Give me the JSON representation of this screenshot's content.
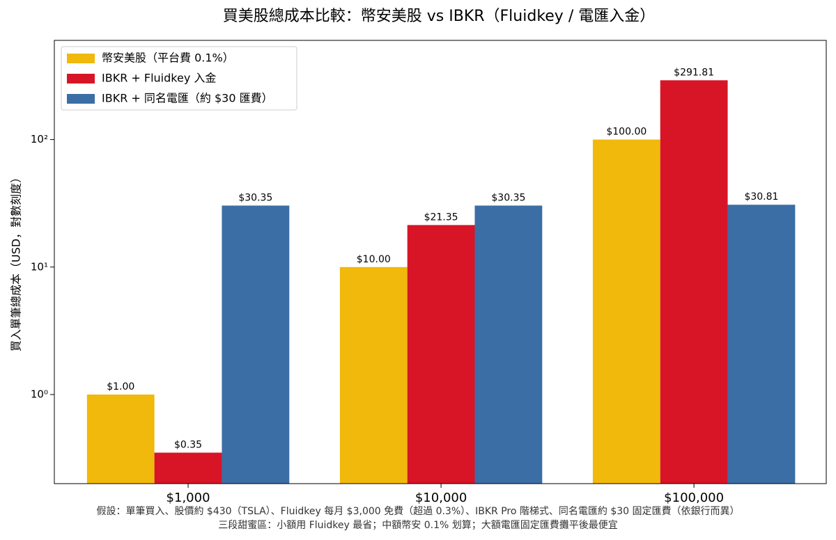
{
  "chart_data": {
    "type": "bar",
    "title": "買美股總成本比較：幣安美股 vs IBKR（Fluidkey / 電匯入金）",
    "y_label": "買入單筆總成本（USD，對數刻度）",
    "categories": [
      "$1,000",
      "$10,000",
      "$100,000"
    ],
    "series": [
      {
        "name": "幣安美股（平台費 0.1%）",
        "color": "#f0b90b",
        "values": [
          1.0,
          10.0,
          100.0
        ],
        "value_labels": [
          "$1.00",
          "$10.00",
          "$100.00"
        ]
      },
      {
        "name": "IBKR + Fluidkey 入金",
        "color": "#d71526",
        "values": [
          0.35,
          21.35,
          291.81
        ],
        "value_labels": [
          "$0.35",
          "$21.35",
          "$291.81"
        ]
      },
      {
        "name": "IBKR + 同名電匯（約 $30 匯費）",
        "color": "#3b6ea5",
        "values": [
          30.35,
          30.35,
          30.81
        ],
        "value_labels": [
          "$30.35",
          "$30.35",
          "$30.81"
        ]
      }
    ],
    "log_y": true,
    "ylim": [
      0.2,
      600
    ],
    "yticks": [
      {
        "value": 1,
        "label": "10⁰"
      },
      {
        "value": 10,
        "label": "10¹"
      },
      {
        "value": 100,
        "label": "10²"
      }
    ],
    "legend": "upper-left",
    "notes": [
      "假設：單筆買入、股價約 $430（TSLA）、Fluidkey 每月 $3,000 免費（超過 0.3%）、IBKR Pro 階梯式、同名電匯約 $30 固定匯費（依銀行而異）",
      "三段甜蜜區：小額用 Fluidkey 最省；中額幣安 0.1% 划算；大額電匯固定匯費攤平後最便宜"
    ]
  }
}
